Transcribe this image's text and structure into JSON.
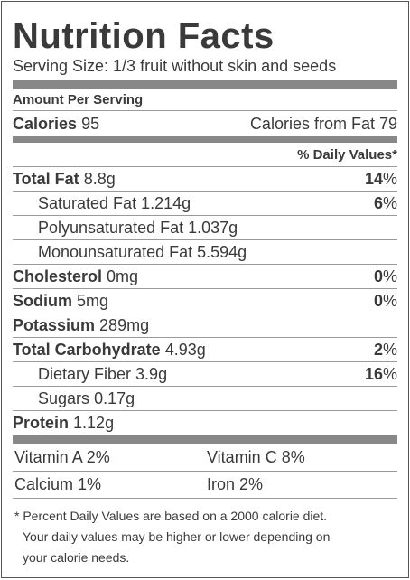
{
  "title": "Nutrition Facts",
  "serving": "Serving Size: 1/3 fruit without skin and seeds",
  "amount_per_serving": "Amount Per Serving",
  "calories": {
    "label": "Calories",
    "value": "95",
    "from_fat": "Calories from Fat 79"
  },
  "dv_header": "% Daily Values*",
  "nutrients": [
    {
      "label": "Total Fat",
      "amount": "8.8g",
      "dv": "14",
      "pct": "%"
    },
    {
      "label": "Saturated Fat",
      "amount": "1.214g",
      "dv": "6",
      "pct": "%"
    },
    {
      "label": "Polyunsaturated Fat",
      "amount": "1.037g",
      "dv": "",
      "pct": ""
    },
    {
      "label": "Monounsaturated Fat",
      "amount": "5.594g",
      "dv": "",
      "pct": ""
    },
    {
      "label": "Cholesterol",
      "amount": "0mg",
      "dv": "0",
      "pct": "%"
    },
    {
      "label": "Sodium",
      "amount": "5mg",
      "dv": "0",
      "pct": "%"
    },
    {
      "label": "Potassium",
      "amount": "289mg",
      "dv": "",
      "pct": ""
    },
    {
      "label": "Total Carbohydrate",
      "amount": "4.93g",
      "dv": "2",
      "pct": "%"
    },
    {
      "label": "Dietary Fiber",
      "amount": "3.9g",
      "dv": "16",
      "pct": "%"
    },
    {
      "label": "Sugars",
      "amount": "0.17g",
      "dv": "",
      "pct": ""
    },
    {
      "label": "Protein",
      "amount": "1.12g",
      "dv": "",
      "pct": ""
    }
  ],
  "vitamins": [
    {
      "left": "Vitamin A 2%",
      "right": "Vitamin C 8%"
    },
    {
      "left": "Calcium 1%",
      "right": "Iron 2%"
    }
  ],
  "footnote": {
    "line1": "* Percent Daily Values are based on a 2000 calorie diet.",
    "line2": "Your daily values may be higher or lower depending on",
    "line3": "your calorie needs."
  }
}
